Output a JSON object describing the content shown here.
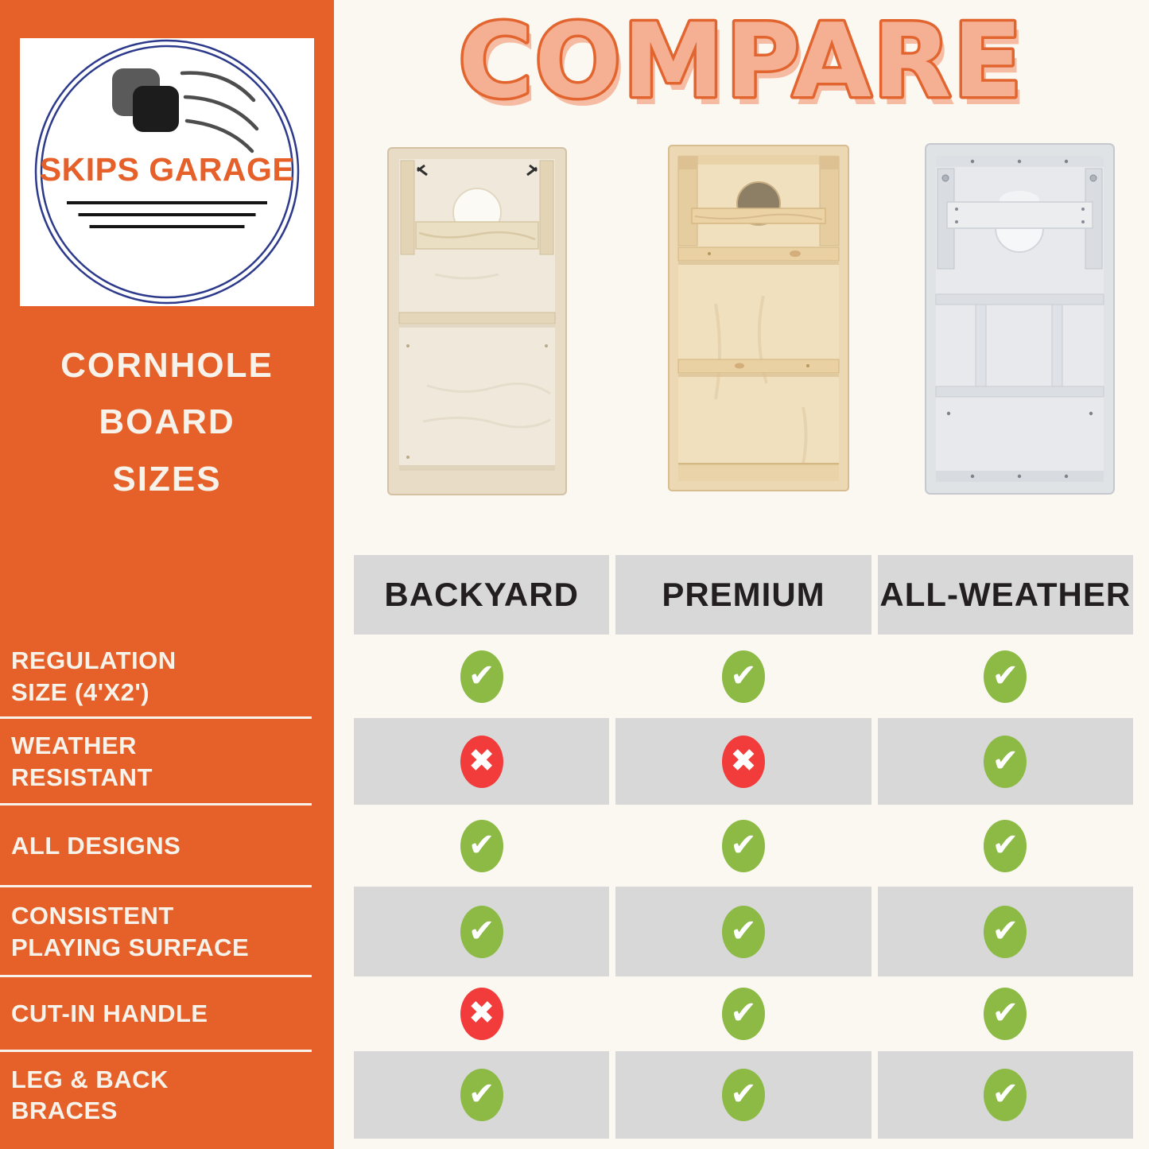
{
  "colors": {
    "orange": "#E6602A",
    "cream": "#FBF8F1",
    "gray-row": "#D8D8D8",
    "green": "#8CBA45",
    "red": "#F23B3B",
    "navy": "#2D3A8C",
    "title-fill": "#F5AF92",
    "title-stroke": "#E2652F",
    "header-text": "#231F20",
    "sidebar-text": "#F8F3EA"
  },
  "sidebar": {
    "logo": {
      "brand": "SKIPS GARAGE"
    },
    "title": "CORNHOLE\nBOARD\nSIZES",
    "features": [
      "REGULATION\nSIZE (4'X2')",
      "WEATHER\nRESISTANT",
      "ALL DESIGNS",
      "CONSISTENT\nPLAYING SURFACE",
      "CUT-IN HANDLE",
      "LEG & BACK\nBRACES"
    ]
  },
  "main": {
    "title": "COMPARE"
  },
  "table": {
    "columns": [
      "BACKYARD",
      "PREMIUM",
      "ALL-WEATHER"
    ],
    "rows": [
      [
        "yes",
        "yes",
        "yes"
      ],
      [
        "no",
        "no",
        "yes"
      ],
      [
        "yes",
        "yes",
        "yes"
      ],
      [
        "yes",
        "yes",
        "yes"
      ],
      [
        "no",
        "yes",
        "yes"
      ],
      [
        "yes",
        "yes",
        "yes"
      ]
    ]
  },
  "icons": {
    "check": "✔",
    "cross": "✖"
  }
}
